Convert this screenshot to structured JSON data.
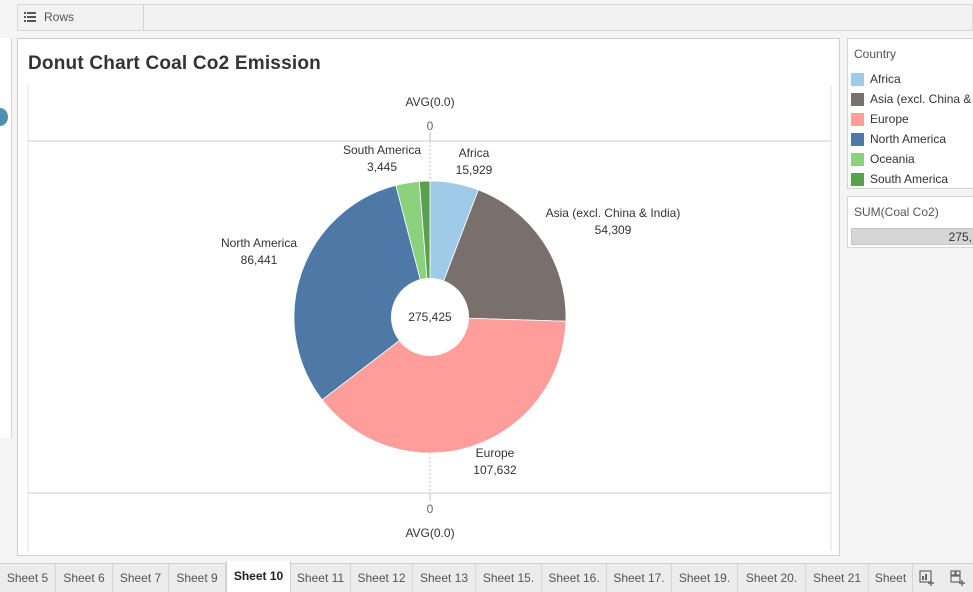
{
  "rows_shelf": {
    "label": "Rows"
  },
  "sheet": {
    "title": "Donut Chart Coal Co2 Emission"
  },
  "axis": {
    "top_label": "AVG(0.0)",
    "top_tick": "0",
    "bottom_tick": "0",
    "bottom_label": "AVG(0.0)"
  },
  "chart_data": {
    "type": "pie",
    "title": "Donut Chart Coal Co2 Emission",
    "center_label": "275,425",
    "total": 275425,
    "slices": [
      {
        "label": "Africa",
        "value": 15929,
        "value_label": "15,929",
        "color": "#a0cbe8"
      },
      {
        "label": "Asia (excl. China & India)",
        "value": 54309,
        "value_label": "54,309",
        "color": "#79706e"
      },
      {
        "label": "Europe",
        "value": 107632,
        "value_label": "107,632",
        "color": "#ff9d9a"
      },
      {
        "label": "North America",
        "value": 86441,
        "value_label": "86,441",
        "color": "#4e79a7"
      },
      {
        "label": "Oceania",
        "value": 7669,
        "value_label": "",
        "color": "#8cd17d"
      },
      {
        "label": "South America",
        "value": 3445,
        "value_label": "3,445",
        "color": "#59a14f"
      }
    ]
  },
  "legend": {
    "title": "Country",
    "items": [
      {
        "label": "Africa",
        "color": "#a0cbe8"
      },
      {
        "label": "Asia (excl. China &",
        "color": "#79706e"
      },
      {
        "label": "Europe",
        "color": "#ff9d9a"
      },
      {
        "label": "North America",
        "color": "#4e79a7"
      },
      {
        "label": "Oceania",
        "color": "#8cd17d"
      },
      {
        "label": "South America",
        "color": "#59a14f"
      }
    ]
  },
  "size_legend": {
    "title": "SUM(Coal Co2)",
    "value": "275,"
  },
  "tabs": [
    {
      "label": "Sheet 5",
      "active": false
    },
    {
      "label": "Sheet 6",
      "active": false
    },
    {
      "label": "Sheet 7",
      "active": false
    },
    {
      "label": "Sheet 9",
      "active": false
    },
    {
      "label": "Sheet 10",
      "active": true
    },
    {
      "label": "Sheet 11",
      "active": false
    },
    {
      "label": "Sheet 12",
      "active": false
    },
    {
      "label": "Sheet 13",
      "active": false
    },
    {
      "label": "Sheet 15.",
      "active": false
    },
    {
      "label": "Sheet 16.",
      "active": false
    },
    {
      "label": "Sheet 17.",
      "active": false
    },
    {
      "label": "Sheet 19.",
      "active": false
    },
    {
      "label": "Sheet 20.",
      "active": false
    },
    {
      "label": "Sheet 21",
      "active": false
    },
    {
      "label": "Sheet",
      "active": false
    }
  ],
  "icons": {
    "new_dashboard": "new-dashboard-icon",
    "new_story": "new-story-icon"
  }
}
